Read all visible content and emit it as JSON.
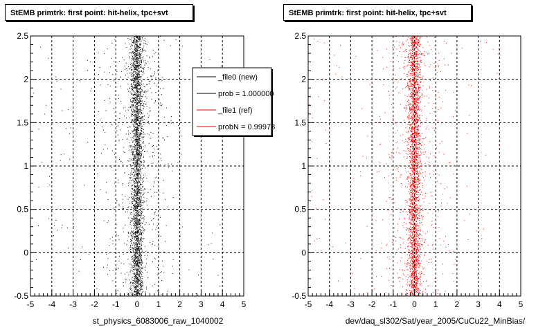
{
  "colors": {
    "new": "#000000",
    "ref": "#ff0000"
  },
  "chart_data": [
    {
      "type": "scatter",
      "title": "StEMB primtrk: first point: hit-helix, tpc+svt",
      "xlabel": "st_physics_6083006_raw_1040002",
      "ylabel": "",
      "xlim": [
        -5,
        5
      ],
      "ylim": [
        -0.5,
        2.5
      ],
      "xticks": [
        "-5",
        "-4",
        "-3",
        "-2",
        "-1",
        "0",
        "1",
        "2",
        "3",
        "4",
        "5"
      ],
      "yticks": [
        "-0.5",
        "0",
        "0.5",
        "1",
        "1.5",
        "2",
        "2.5"
      ],
      "grid": true,
      "distribution": {
        "x_center": 0.0,
        "x_core_width": 0.15,
        "x_tail_width": 0.8,
        "y_range": [
          -0.5,
          2.5
        ]
      },
      "series": [
        {
          "name": "_file0 (new)",
          "color": "#000000"
        }
      ],
      "legend": {
        "position": "top-right",
        "entries": [
          {
            "label": "_file0 (new)",
            "color": "#000000"
          },
          {
            "label": "prob = 1.000000",
            "color": "#000000"
          },
          {
            "label": "_file1 (ref)",
            "color": "#ff0000"
          },
          {
            "label": "probN = 0.99978",
            "color": "#ff0000"
          }
        ]
      }
    },
    {
      "type": "scatter",
      "title": "StEMB primtrk: first point: hit-helix, tpc+svt",
      "xlabel": "dev/daq_sl302/Sat/year_2005/CuCu22_MinBias/",
      "ylabel": "",
      "xlim": [
        -5,
        5
      ],
      "ylim": [
        -0.5,
        2.5
      ],
      "xticks": [
        "-5",
        "-4",
        "-3",
        "-2",
        "-1",
        "0",
        "1",
        "2",
        "3",
        "4",
        "5"
      ],
      "yticks": [
        "-0.5",
        "0",
        "0.5",
        "1",
        "1.5",
        "2",
        "2.5"
      ],
      "grid": true,
      "distribution": {
        "x_center": 0.0,
        "x_core_width": 0.15,
        "x_tail_width": 0.8,
        "y_range": [
          -0.5,
          2.5
        ]
      },
      "series": [
        {
          "name": "_file1 (ref)",
          "color": "#ff0000"
        }
      ]
    }
  ]
}
